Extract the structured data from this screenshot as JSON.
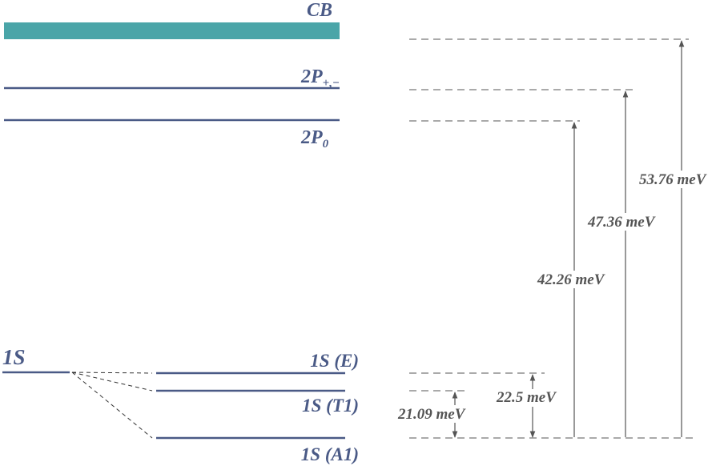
{
  "colors": {
    "conduction_band": "#4aa5a8",
    "level_line": "#4a5a86",
    "label_text": "#4a5a86",
    "energy_text": "#555555"
  },
  "labels": {
    "cb": "CB",
    "p_pm_main": "2P",
    "p_pm_sub": "+,−",
    "p0_main": "2P",
    "p0_sub": "0",
    "s1": "1S",
    "s1_e": "1S (E)",
    "s1_t1": "1S (T1)",
    "s1_a1": "1S (A1)"
  },
  "transitions": [
    {
      "id": "t-21",
      "label": "21.09 meV",
      "value_mev": 21.09
    },
    {
      "id": "t-22",
      "label": "22.5 meV",
      "value_mev": 22.5
    },
    {
      "id": "t-42",
      "label": "42.26 meV",
      "value_mev": 42.26
    },
    {
      "id": "t-47",
      "label": "47.36 meV",
      "value_mev": 47.36
    },
    {
      "id": "t-53",
      "label": "53.76 meV",
      "value_mev": 53.76
    }
  ]
}
